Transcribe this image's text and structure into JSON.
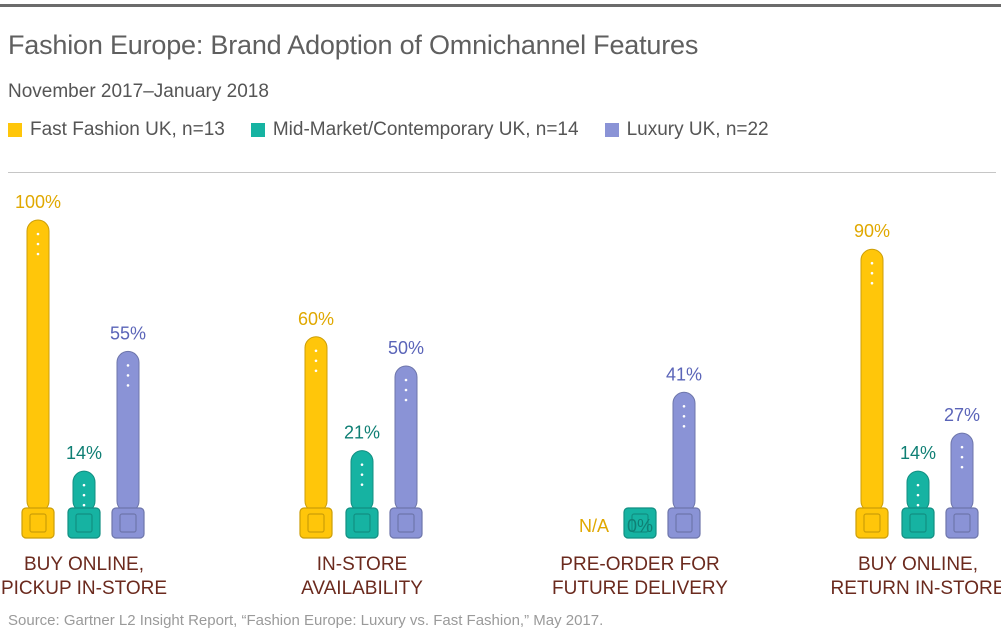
{
  "title": "Fashion Europe: Brand Adoption of Omnichannel Features",
  "subtitle": "November 2017–January 2018",
  "source": "Source: Gartner L2 Insight Report, “Fashion Europe: Luxury vs. Fast Fashion,” May 2017.",
  "legend": [
    {
      "label": "Fast Fashion UK, n=13",
      "color": "#ffc60a"
    },
    {
      "label": "Mid-Market/Contemporary UK, n=14",
      "color": "#16b3a2"
    },
    {
      "label": "Luxury UK, n=22",
      "color": "#8a93d6"
    }
  ],
  "chart_data": {
    "type": "bar",
    "categories": [
      [
        "BUY ONLINE,",
        "PICKUP IN-STORE"
      ],
      [
        "IN-STORE",
        "AVAILABILITY"
      ],
      [
        "PRE-ORDER FOR",
        "FUTURE DELIVERY"
      ],
      [
        "BUY ONLINE,",
        "RETURN IN-STORE"
      ]
    ],
    "ylim": [
      0,
      100
    ],
    "series": [
      {
        "name": "Fast Fashion UK, n=13",
        "color": "#ffc60a",
        "label_color": "#e0a800",
        "values": [
          100,
          60,
          null,
          90
        ],
        "labels": [
          "100%",
          "60%",
          "N/A",
          "90%"
        ]
      },
      {
        "name": "Mid-Market/Contemporary UK, n=14",
        "color": "#16b3a2",
        "label_color": "#0f7f74",
        "values": [
          14,
          21,
          0,
          14
        ],
        "labels": [
          "14%",
          "21%",
          "0%",
          "14%"
        ]
      },
      {
        "name": "Luxury UK, n=22",
        "color": "#8a93d6",
        "label_color": "#5a64b8",
        "values": [
          55,
          50,
          41,
          27
        ],
        "labels": [
          "55%",
          "50%",
          "41%",
          "27%"
        ]
      }
    ],
    "category_label_color": "#6b2a1e"
  }
}
